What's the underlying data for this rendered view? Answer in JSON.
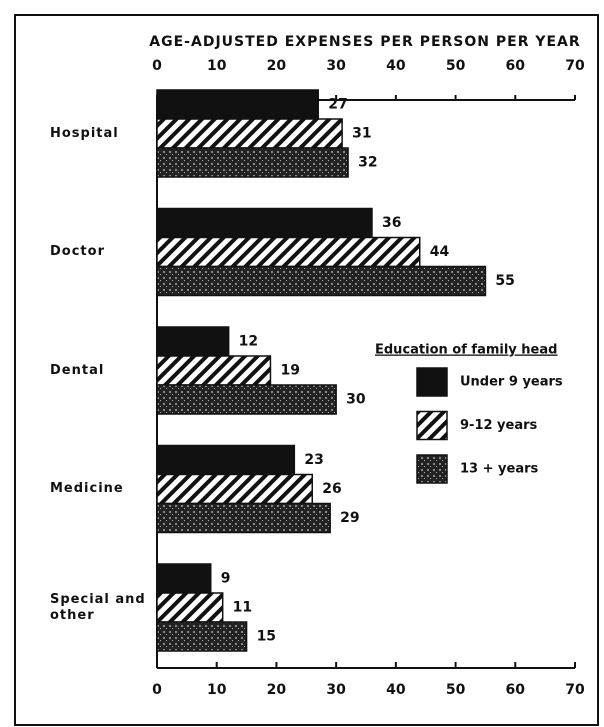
{
  "chart_data": {
    "type": "hbar",
    "title": "AGE-ADJUSTED EXPENSES PER PERSON PER YEAR",
    "categories": [
      "Hospital",
      "Doctor",
      "Dental",
      "Medicine",
      "Special and other"
    ],
    "series": [
      {
        "name": "Under 9 years",
        "color": "#111111",
        "pattern": "solid",
        "values": [
          27,
          36,
          12,
          23,
          9
        ]
      },
      {
        "name": "9-12 years",
        "color": "#111111",
        "pattern": "hatch",
        "values": [
          31,
          44,
          19,
          26,
          11
        ]
      },
      {
        "name": "13 + years",
        "color": "#111111",
        "pattern": "mesh",
        "values": [
          32,
          55,
          30,
          29,
          15
        ]
      }
    ],
    "legend_title": "Education of family head",
    "xlim": [
      0,
      70
    ],
    "xticks": [
      0,
      10,
      20,
      30,
      40,
      50,
      60,
      70
    ]
  }
}
